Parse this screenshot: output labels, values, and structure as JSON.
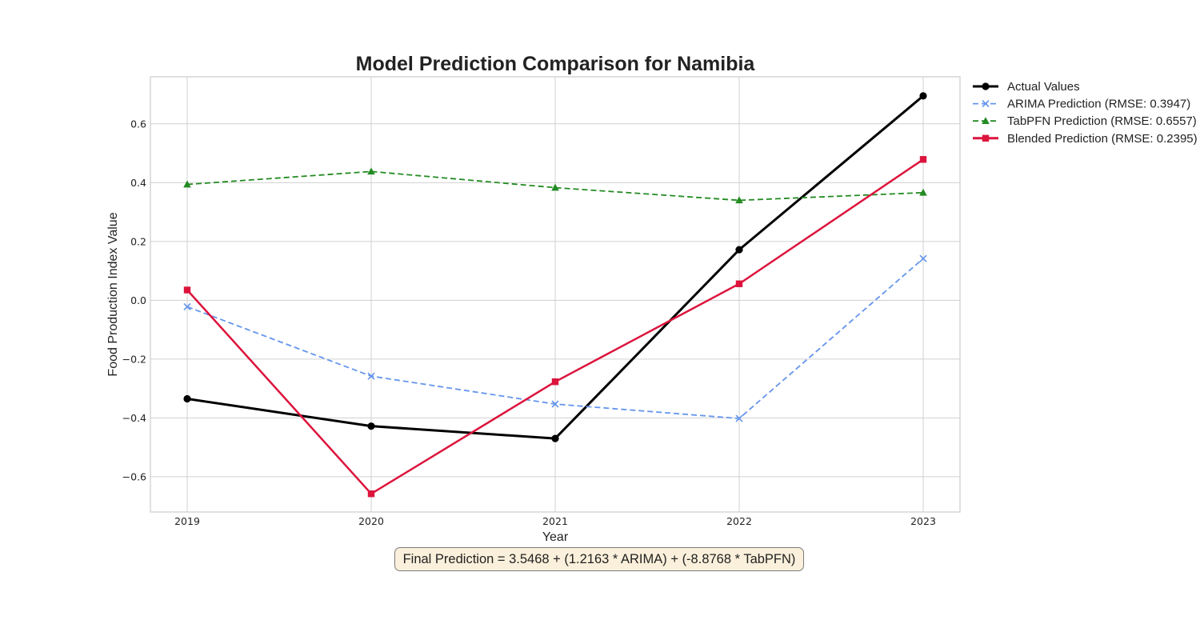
{
  "chart_data": {
    "type": "line",
    "title": "Model Prediction Comparison for Namibia",
    "xlabel": "Year",
    "ylabel": "Food Production Index Value",
    "x": [
      2019,
      2020,
      2021,
      2022,
      2023
    ],
    "xlim": [
      2018.8,
      2023.2
    ],
    "ylim": [
      -0.72,
      0.76
    ],
    "yticks": [
      -0.6,
      -0.4,
      -0.2,
      0.0,
      0.2,
      0.4,
      0.6
    ],
    "grid": true,
    "legend_position": "outside-top-right",
    "series": [
      {
        "name": "Actual Values",
        "values": [
          -0.335,
          -0.428,
          -0.47,
          0.172,
          0.695
        ],
        "color": "#000000",
        "dash": "solid",
        "marker": "circle"
      },
      {
        "name": "ARIMA Prediction (RMSE: 0.3947)",
        "values": [
          -0.022,
          -0.258,
          -0.353,
          -0.402,
          0.142
        ],
        "color": "#6495ed",
        "dash": "dashed",
        "marker": "x"
      },
      {
        "name": "TabPFN Prediction (RMSE: 0.6557)",
        "values": [
          0.394,
          0.438,
          0.383,
          0.34,
          0.366
        ],
        "color": "#228b22",
        "dash": "dashed",
        "marker": "triangle"
      },
      {
        "name": "Blended Prediction (RMSE: 0.2395)",
        "values": [
          0.035,
          -0.658,
          -0.277,
          0.056,
          0.479
        ],
        "color": "#dc143c",
        "dash": "solid",
        "marker": "square"
      }
    ],
    "annotation": "Final Prediction = 3.5468 + (1.2163 * ARIMA) + (-8.8768 * TabPFN)"
  }
}
